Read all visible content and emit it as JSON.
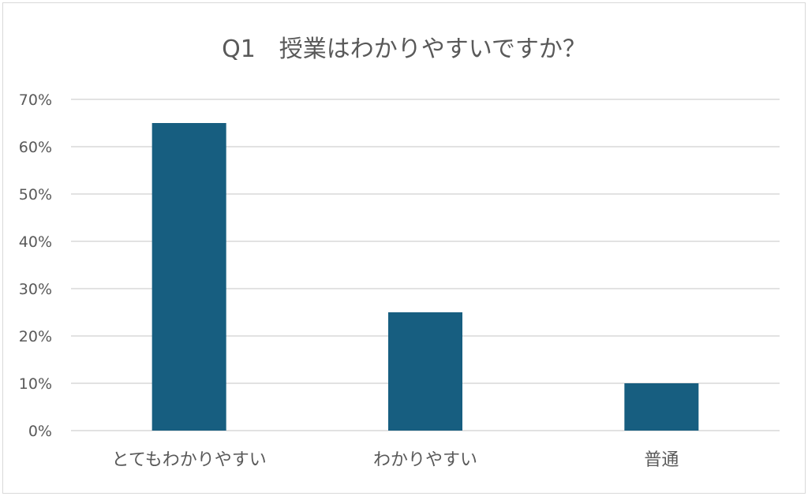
{
  "chart_data": {
    "type": "bar",
    "title": "Q1　授業はわかりやすいですか？",
    "categories": [
      "とてもわかりやすい",
      "わかりやすい",
      "普通"
    ],
    "values": [
      65,
      25,
      10
    ],
    "value_unit": "%",
    "ylim": [
      0,
      70
    ],
    "yticks": [
      "0%",
      "10%",
      "20%",
      "30%",
      "40%",
      "50%",
      "60%",
      "70%"
    ],
    "grid": true,
    "legend": "none",
    "colors": {
      "bar": "#175e80",
      "grid": "#d9d9d9",
      "text": "#595959",
      "border": "#d9d9d9"
    }
  }
}
